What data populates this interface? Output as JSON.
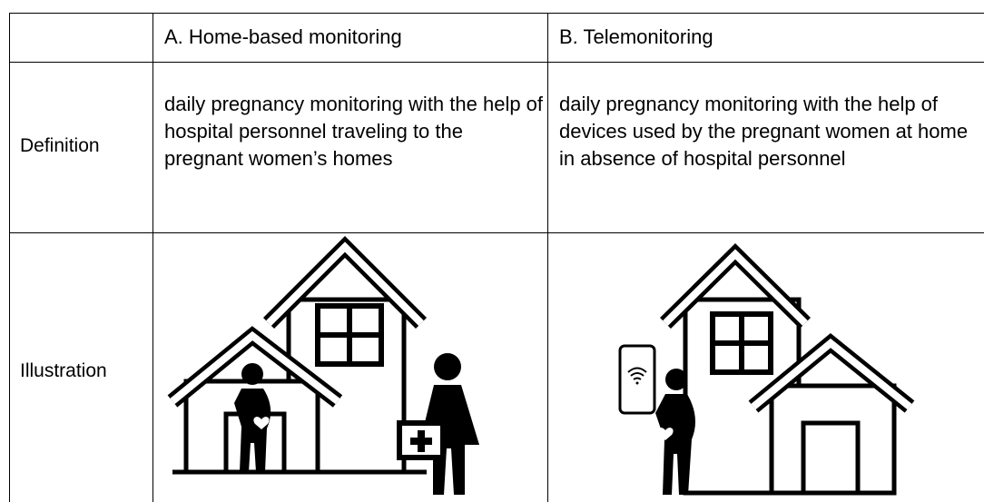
{
  "table": {
    "headers": [
      "A. Home-based monitoring",
      "B. Telemonitoring"
    ],
    "rows": [
      {
        "label": "Definition",
        "cells": [
          "daily pregnancy monitoring with the help of hospital personnel traveling to the pregnant women’s homes",
          "daily pregnancy monitoring with the help of devices used by the pregnant women at home in absence of hospital personnel"
        ]
      },
      {
        "label": "Illustration"
      }
    ]
  }
}
